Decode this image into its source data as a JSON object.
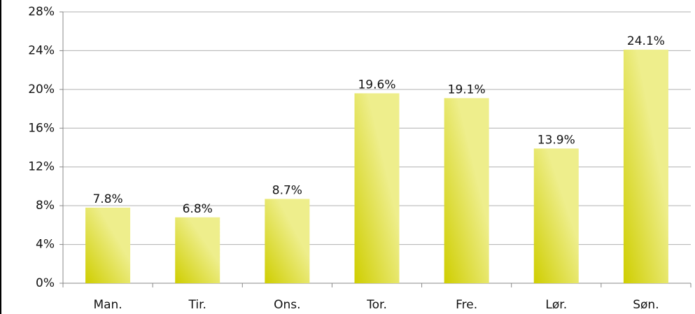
{
  "chart_data": {
    "type": "bar",
    "categories": [
      "Man.",
      "Tir.",
      "Ons.",
      "Tor.",
      "Fre.",
      "Lør.",
      "Søn."
    ],
    "values": [
      7.8,
      6.8,
      8.7,
      19.6,
      19.1,
      13.9,
      24.1
    ],
    "value_labels": [
      "7.8%",
      "6.8%",
      "8.7%",
      "19.6%",
      "19.1%",
      "13.9%",
      "24.1%"
    ],
    "color": [
      "#eeee8c",
      "#cfce00"
    ],
    "ylim": [
      0,
      28
    ],
    "yticks": [
      {
        "value": 0,
        "label": "0%"
      },
      {
        "value": 4,
        "label": "4%"
      },
      {
        "value": 8,
        "label": "8%"
      },
      {
        "value": 12,
        "label": "12%"
      },
      {
        "value": 16,
        "label": "16%"
      },
      {
        "value": 20,
        "label": "20%"
      },
      {
        "value": 24,
        "label": "24%"
      },
      {
        "value": 28,
        "label": "28%"
      }
    ],
    "grid": true
  }
}
